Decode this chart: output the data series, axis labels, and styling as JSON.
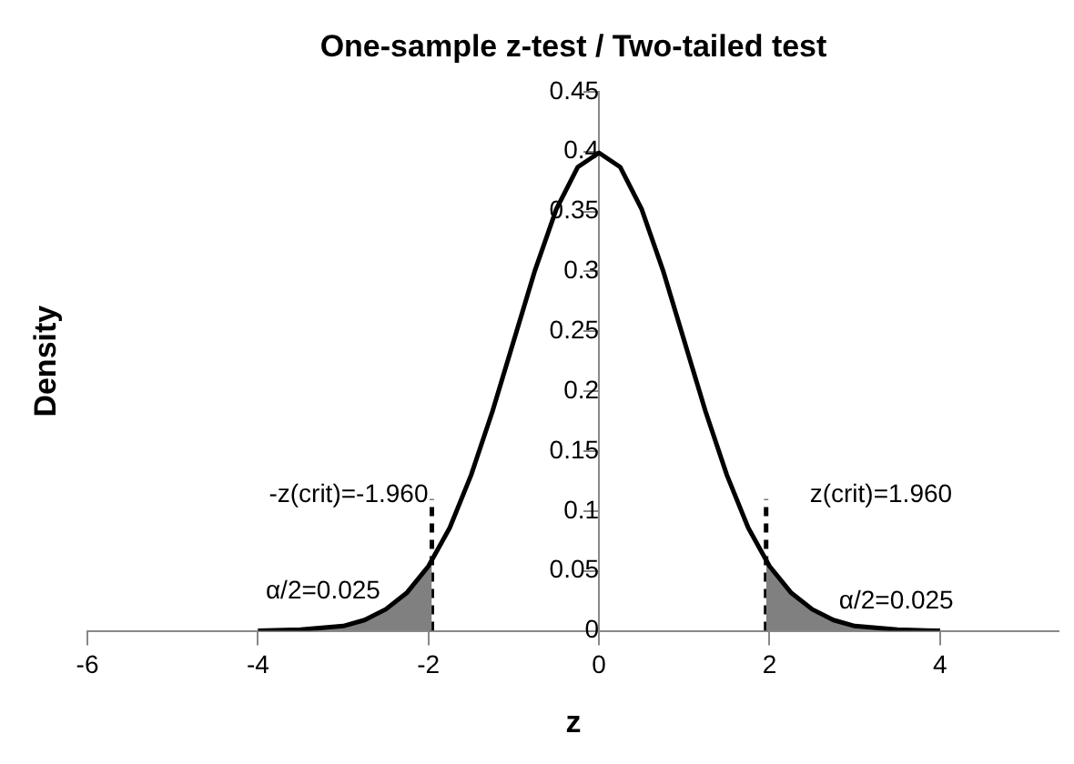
{
  "chart_data": {
    "type": "line",
    "title": "One-sample z-test / Two-tailed test",
    "xlabel": "z",
    "ylabel": "Density",
    "xlim": [
      -6,
      5.4
    ],
    "xticks": [
      -6,
      -4,
      -2,
      0,
      2,
      4
    ],
    "ylim": [
      0,
      0.45
    ],
    "yticks": [
      0,
      0.05,
      0.1,
      0.15,
      0.2,
      0.25,
      0.3,
      0.35,
      0.4,
      0.45
    ],
    "grid": false,
    "legend": false,
    "marker": "none",
    "series": [
      {
        "type": "line",
        "color": "#000000",
        "x": [
          -4,
          -3.5,
          -3,
          -2.75,
          -2.5,
          -2.25,
          -2,
          -1.75,
          -1.5,
          -1.25,
          -1,
          -0.75,
          -0.5,
          -0.25,
          0,
          0.25,
          0.5,
          0.75,
          1,
          1.25,
          1.5,
          1.75,
          2,
          2.25,
          2.5,
          2.75,
          3,
          3.5,
          4
        ],
        "values": [
          0,
          0.001,
          0.004,
          0.009,
          0.018,
          0.032,
          0.054,
          0.086,
          0.13,
          0.183,
          0.242,
          0.301,
          0.352,
          0.387,
          0.399,
          0.387,
          0.352,
          0.301,
          0.242,
          0.183,
          0.13,
          0.086,
          0.054,
          0.032,
          0.018,
          0.009,
          0.004,
          0.001,
          0
        ]
      },
      {
        "type": "area",
        "color": "#808080",
        "x": [
          -4,
          -3.5,
          -3,
          -2.75,
          -2.5,
          -2.25,
          -1.96
        ],
        "values": [
          0,
          0.001,
          0.004,
          0.009,
          0.018,
          0.032,
          0.058
        ]
      },
      {
        "type": "area",
        "color": "#808080",
        "x": [
          1.96,
          2.25,
          2.5,
          2.75,
          3,
          3.5,
          4
        ],
        "values": [
          0.058,
          0.032,
          0.018,
          0.009,
          0.004,
          0.001,
          0
        ]
      },
      {
        "type": "line",
        "color": "#000000",
        "line_style": "dashed",
        "x": [
          -1.96,
          -1.96
        ],
        "values": [
          0,
          0.11
        ]
      },
      {
        "type": "line",
        "color": "#000000",
        "line_style": "dashed",
        "x": [
          1.96,
          1.96
        ],
        "values": [
          0,
          0.11
        ]
      }
    ],
    "annotations": [
      {
        "text": "-z(crit)=-1.960",
        "x": -1.96,
        "y": 0.11
      },
      {
        "text": "z(crit)=1.960",
        "x": 1.96,
        "y": 0.11
      },
      {
        "text": "α/2=0.025",
        "x": -2.5,
        "y": 0.018
      },
      {
        "text": "α/2=0.025",
        "x": 2.75,
        "y": 0.009
      }
    ]
  }
}
